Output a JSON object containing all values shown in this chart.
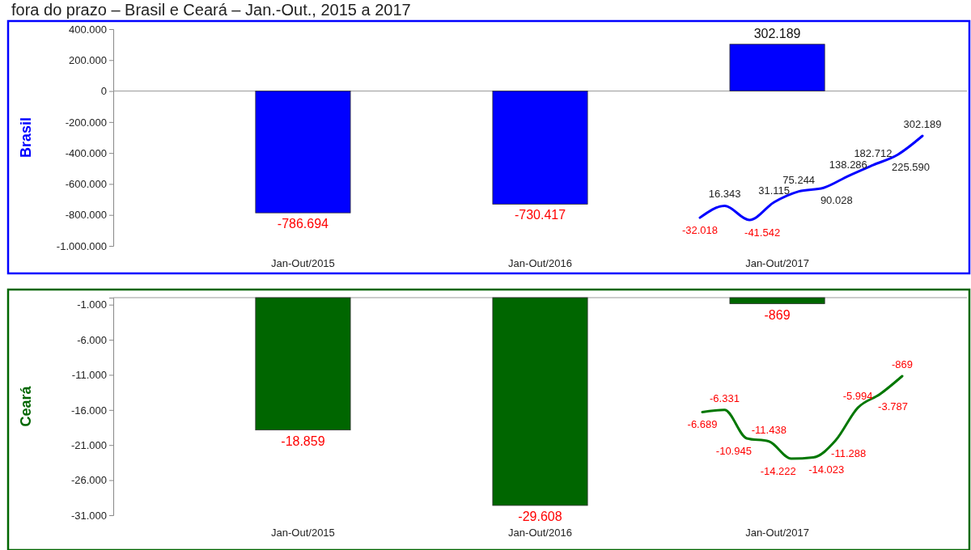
{
  "chart_data": [
    {
      "type": "bar",
      "title": "fora do prazo – Brasil e Ceará – Jan.-Out., 2015 a 2017",
      "ylabel": "Brasil",
      "categories": [
        "Jan-Out/2015",
        "Jan-Out/2016",
        "Jan-Out/2017"
      ],
      "values": [
        -786694,
        -730417,
        302189
      ],
      "value_labels": [
        "-786.694",
        "-730.417",
        "302.189"
      ],
      "color": "#0000ff",
      "ylim": [
        -1000000,
        400000
      ],
      "yticks": [
        {
          "value": 400000,
          "label": "400.000"
        },
        {
          "value": 200000,
          "label": "200.000"
        },
        {
          "value": 0,
          "label": "0"
        },
        {
          "value": -200000,
          "label": "-200.000"
        },
        {
          "value": -400000,
          "label": "-400.000"
        },
        {
          "value": -600000,
          "label": "-600.000"
        },
        {
          "value": -800000,
          "label": "-800.000"
        },
        {
          "value": -1000000,
          "label": "-1.000.000"
        }
      ]
    },
    {
      "type": "line",
      "categories": [
        null,
        null,
        null,
        null,
        null,
        null,
        null,
        null,
        null,
        null
      ],
      "values": [
        -32018,
        16343,
        -41542,
        31115,
        75244,
        90028,
        138286,
        182712,
        225590,
        302189
      ],
      "value_labels": [
        "-32.018",
        "16.343",
        "-41.542",
        "31.115",
        "75.244",
        "90.028",
        "138.286",
        "182.712",
        "225.590",
        "302.189"
      ],
      "color": "#0000ff"
    },
    {
      "type": "bar",
      "ylabel": "Ceará",
      "categories": [
        "Jan-Out/2015",
        "Jan-Out/2016",
        "Jan-Out/2017"
      ],
      "values": [
        -18859,
        -29608,
        -869
      ],
      "value_labels": [
        "-18.859",
        "-29.608",
        "-869"
      ],
      "color": "#006600",
      "ylim": [
        -31000,
        0
      ],
      "yticks": [
        {
          "value": -1000,
          "label": "-1.000"
        },
        {
          "value": -6000,
          "label": "-6.000"
        },
        {
          "value": -11000,
          "label": "-11.000"
        },
        {
          "value": -16000,
          "label": "-16.000"
        },
        {
          "value": -21000,
          "label": "-21.000"
        },
        {
          "value": -26000,
          "label": "-26.000"
        },
        {
          "value": -31000,
          "label": "-31.000"
        }
      ]
    },
    {
      "type": "line",
      "categories": [
        null,
        null,
        null,
        null,
        null,
        null,
        null,
        null,
        null,
        null
      ],
      "values": [
        -6689,
        -6331,
        -10945,
        -11438,
        -14222,
        -14023,
        -11288,
        -5994,
        -3787,
        -869
      ],
      "value_labels": [
        "-6.689",
        "-6.331",
        "-10.945",
        "-11.438",
        "-14.222",
        "-14.023",
        "-11.288",
        "-5.994",
        "-3.787",
        "-869"
      ],
      "color": "#007700"
    }
  ]
}
